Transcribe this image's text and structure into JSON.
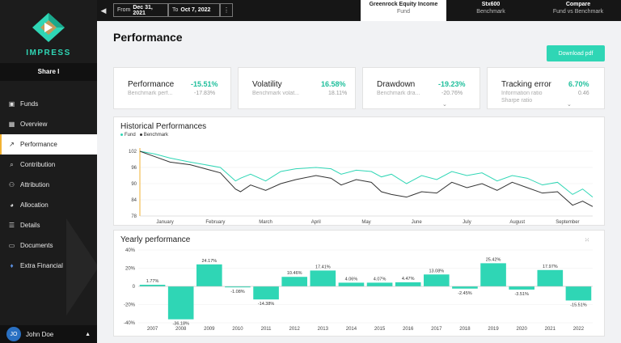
{
  "sidebar": {
    "brand": "IMPRESS",
    "share": "Share I",
    "items": [
      {
        "label": "Funds",
        "icon": "briefcase-icon"
      },
      {
        "label": "Overview",
        "icon": "grid-icon"
      },
      {
        "label": "Performance",
        "icon": "trend-icon"
      },
      {
        "label": "Contribution",
        "icon": "search-icon"
      },
      {
        "label": "Attribution",
        "icon": "tree-icon"
      },
      {
        "label": "Allocation",
        "icon": "pie-icon"
      },
      {
        "label": "Details",
        "icon": "list-icon"
      },
      {
        "label": "Documents",
        "icon": "folder-icon"
      },
      {
        "label": "Extra Financial",
        "icon": "leaf-icon"
      }
    ],
    "active_index": 2,
    "user": {
      "initials": "JO",
      "name": "John Doe"
    }
  },
  "topbar": {
    "from_label": "From",
    "from_date": "Dec 31, 2021",
    "to_label": "To",
    "to_date": "Oct 7, 2022",
    "tabs": [
      {
        "title": "Greenrock Equity Income",
        "sub": "Fund"
      },
      {
        "title": "Stx600",
        "sub": "Benchmark"
      },
      {
        "title": "Compare",
        "sub": "Fund vs Benchmark"
      }
    ]
  },
  "page": {
    "title": "Performance",
    "download_label": "Download pdf"
  },
  "kpis": [
    {
      "label": "Performance",
      "value": "-15.51%",
      "sub_label": "Benchmark perf...",
      "sub_value": "-17.83%"
    },
    {
      "label": "Volatility",
      "value": "16.58%",
      "sub_label": "Benchmark volat...",
      "sub_value": "18.11%"
    },
    {
      "label": "Drawdown",
      "value": "-19.23%",
      "sub_label": "Benchmark dra...",
      "sub_value": "-20.76%"
    },
    {
      "label": "Tracking error",
      "value": "6.70%",
      "sub_label": "Information ratio",
      "sub_value": "0.46",
      "sub_label2": "Sharpe ratio"
    }
  ],
  "colors": {
    "accent": "#2fd6b5",
    "fund": "#2fd6b5",
    "benchmark": "#333333",
    "highlight": "#f2b233"
  },
  "historical": {
    "title": "Historical Performances",
    "legend_fund": "Fund",
    "legend_benchmark": "Benchmark"
  },
  "yearly": {
    "title": "Yearly performance"
  },
  "chart_data": [
    {
      "type": "line",
      "title": "Historical Performances",
      "x_ticks": [
        "January",
        "February",
        "March",
        "April",
        "May",
        "June",
        "July",
        "August",
        "September"
      ],
      "y_ticks": [
        78,
        84,
        90,
        96,
        102
      ],
      "ylim": [
        78,
        102
      ],
      "x": [
        0,
        0.3,
        0.6,
        1.0,
        1.3,
        1.6,
        1.9,
        2.0,
        2.2,
        2.5,
        2.8,
        3.1,
        3.5,
        3.8,
        4.0,
        4.3,
        4.6,
        4.8,
        5.0,
        5.3,
        5.6,
        5.9,
        6.2,
        6.5,
        6.8,
        7.1,
        7.4,
        7.7,
        8.0,
        8.3,
        8.6,
        8.8,
        9.0
      ],
      "series": [
        {
          "name": "Fund",
          "values": [
            102,
            101,
            99.5,
            98,
            97,
            96,
            91,
            92,
            93.5,
            91,
            94.5,
            95.5,
            96,
            95.5,
            93.5,
            95,
            94.5,
            92.5,
            93.5,
            90,
            93,
            91.5,
            94.5,
            93,
            94,
            91,
            93,
            92,
            89.5,
            90.5,
            86,
            88,
            85
          ]
        },
        {
          "name": "Benchmark",
          "values": [
            102,
            100,
            98,
            97,
            95.5,
            94,
            88,
            87,
            89.5,
            87.5,
            90,
            91.5,
            93,
            92,
            89.5,
            91.5,
            90.5,
            87,
            86,
            85,
            87,
            86.5,
            90.5,
            88.5,
            90,
            87.5,
            90.5,
            88.5,
            86.5,
            87,
            82,
            83.5,
            81.5
          ]
        }
      ]
    },
    {
      "type": "bar",
      "title": "Yearly performance",
      "categories": [
        "2007",
        "2008",
        "2009",
        "2010",
        "2011",
        "2012",
        "2013",
        "2014",
        "2015",
        "2016",
        "2017",
        "2018",
        "2019",
        "2020",
        "2021",
        "2022"
      ],
      "values": [
        1.77,
        -36.18,
        24.17,
        -1.08,
        -14.38,
        10.46,
        17.41,
        4.06,
        4.07,
        4.47,
        13.08,
        -2.45,
        25.42,
        -3.51,
        17.97,
        -15.51
      ],
      "value_labels": [
        "1.77%",
        "-36.18%",
        "24.17%",
        "-1.08%",
        "-14.38%",
        "10.46%",
        "17.41%",
        "4.06%",
        "4.07%",
        "4.47%",
        "13.08%",
        "-2.45%",
        "25.42%",
        "-3.51%",
        "17.97%",
        "-15.51%"
      ],
      "y_ticks": [
        -40,
        -20,
        0,
        20,
        40
      ],
      "y_tick_labels": [
        "-40%",
        "-20%",
        "0",
        "20%",
        "40%"
      ],
      "ylim": [
        -40,
        40
      ]
    }
  ]
}
